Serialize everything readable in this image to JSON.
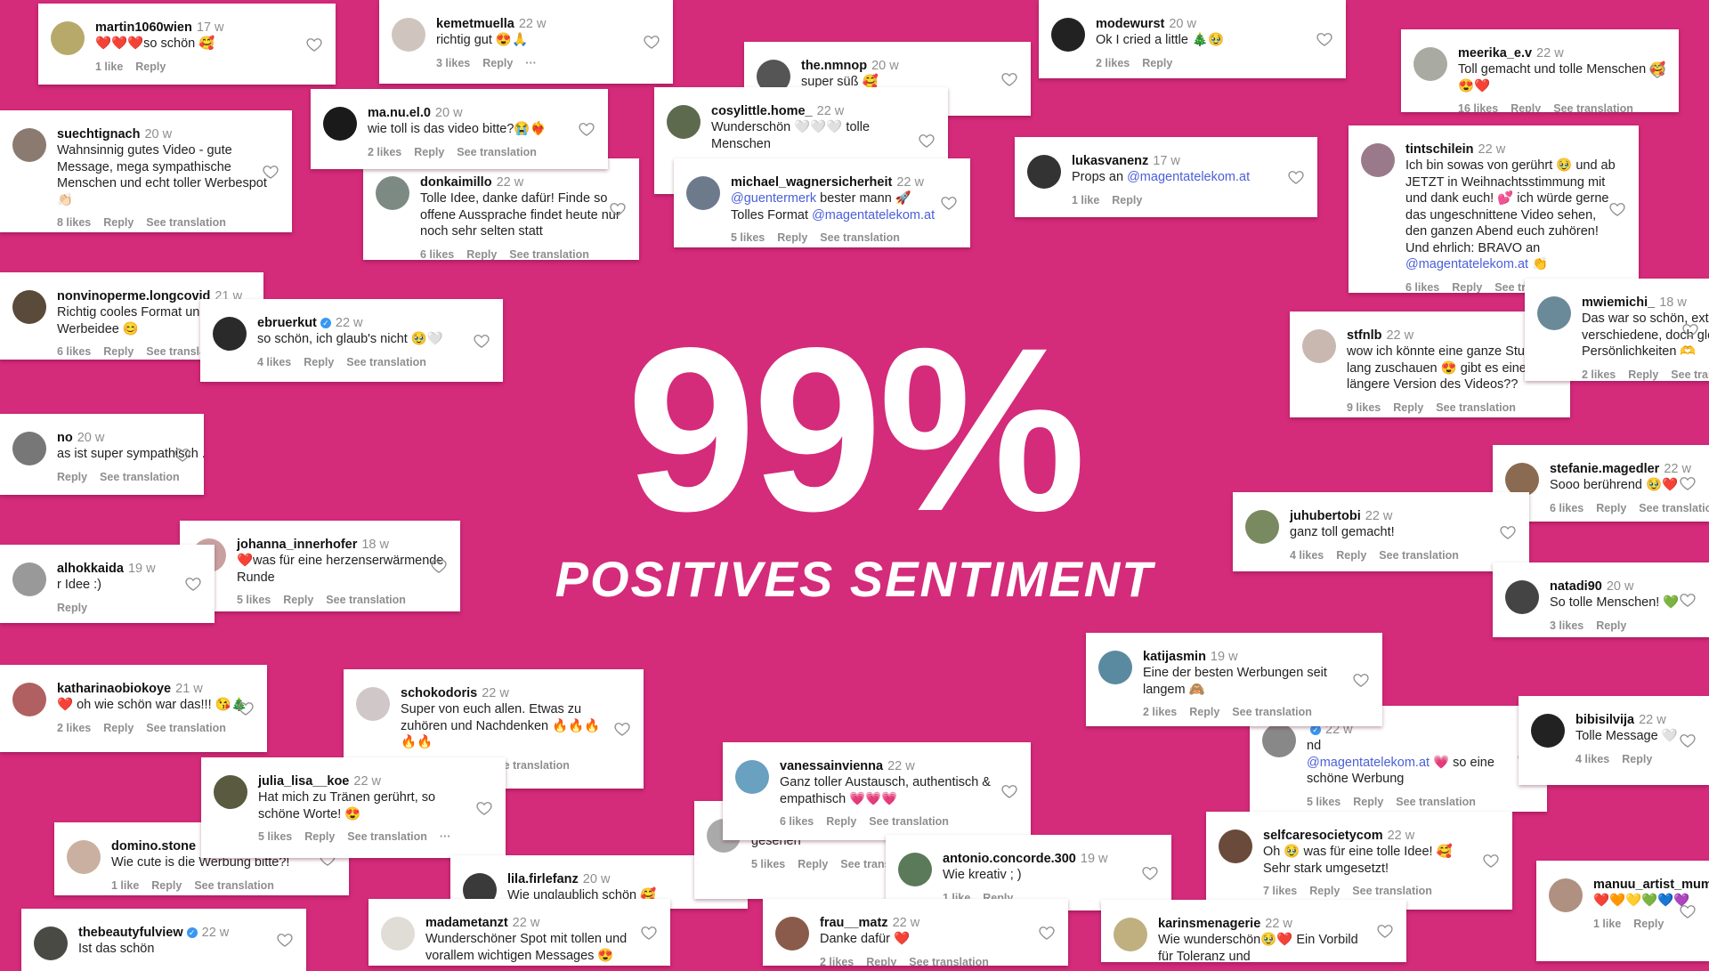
{
  "headline": {
    "value": "99%",
    "label": "POSITIVES SENTIMENT"
  },
  "colors": {
    "background": "#d42b7a",
    "mention": "#4a5fd8",
    "text": "#222222",
    "meta": "#8e8e8e"
  },
  "comments": [
    {
      "user": "martin1060wien",
      "time": "17 w",
      "lines": [
        "❤️❤️❤️so schön 🥰"
      ],
      "footer": [
        "1 like",
        "Reply"
      ]
    },
    {
      "user": "kemetmuella",
      "time": "22 w",
      "lines": [
        "richtig gut 😍🙏"
      ],
      "footer": [
        "3 likes",
        "Reply",
        "···"
      ]
    },
    {
      "user": "modewurst",
      "time": "20 w",
      "lines": [
        "Ok I cried a little 🎄🥹"
      ],
      "footer": [
        "2 likes",
        "Reply"
      ]
    },
    {
      "user": "meerika_e.v",
      "time": "22 w",
      "lines": [
        "Toll gemacht und tolle Menschen 🥰",
        "😍❤️"
      ],
      "footer": [
        "16 likes",
        "Reply",
        "See translation"
      ]
    },
    {
      "user": "the.nmnop",
      "time": "20 w",
      "lines": [
        "super süß 🥰"
      ],
      "footer": []
    },
    {
      "user": "cosylittle.home_",
      "time": "22 w",
      "lines": [
        "Wunderschön 🤍🤍🤍 tolle",
        "Menschen"
      ],
      "footer": []
    },
    {
      "user": "michael_wagnersicherheit",
      "time": "22 w",
      "lines": [
        "@guentermerk bester mann 🚀",
        "Tolles Format @magentatelekom.at"
      ],
      "footer": [
        "5 likes",
        "Reply",
        "See translation"
      ]
    },
    {
      "user": "suechtignach",
      "time": "20 w",
      "lines": [
        "Wahnsinnig gutes Video - gute",
        "Message, mega sympathische",
        "Menschen und echt toller Werbespot",
        "👏🏻"
      ],
      "footer": [
        "8 likes",
        "Reply",
        "See translation"
      ]
    },
    {
      "user": "donkaimillo",
      "time": "22 w",
      "lines": [
        "Tolle Idee, danke dafür! Finde so",
        "offene Aussprache findet heute nur",
        "noch sehr selten statt"
      ],
      "footer": [
        "6 likes",
        "Reply",
        "See translation"
      ]
    },
    {
      "user": "ma.nu.el.0",
      "time": "20 w",
      "lines": [
        "wie toll is das video bitte?😭❤️‍🔥"
      ],
      "footer": [
        "2 likes",
        "Reply",
        "See translation"
      ]
    },
    {
      "user": "lukasvanenz",
      "time": "17 w",
      "lines": [
        "Props an @magentatelekom.at"
      ],
      "footer": [
        "1 like",
        "Reply"
      ]
    },
    {
      "user": "tintschilein",
      "time": "22 w",
      "lines": [
        "Ich bin sowas von gerührt 🥹 und ab",
        "JETZT in Weihnachtsstimmung mit",
        "und dank euch! 💕 ich würde gerne",
        "das ungeschnittene Video sehen,",
        "den ganzen Abend euch zuhören!",
        "Und ehrlich: BRAVO an",
        "@magentatelekom.at 👏"
      ],
      "footer": [
        "6 likes",
        "Reply",
        "See translation"
      ]
    },
    {
      "user": "stfnlb",
      "time": "22 w",
      "lines": [
        "wow ich könnte eine ganze Stunde",
        "lang zuschauen 😍 gibt es eine",
        "längere Version des Videos??"
      ],
      "footer": [
        "9 likes",
        "Reply",
        "See translation"
      ]
    },
    {
      "user": "mwiemichi_",
      "time": "18 w",
      "lines": [
        "Das war so schön, extrem",
        "verschiedene, doch gleiche",
        "Persönlichkeiten 🫶"
      ],
      "footer": [
        "2 likes",
        "Reply",
        "See translation"
      ]
    },
    {
      "user": "nonvinoperme.longcovid",
      "time": "21 w",
      "lines": [
        "Richtig cooles Format und eine",
        "Werbeidee 😊"
      ],
      "footer": [
        "6 likes",
        "Reply",
        "See translation"
      ]
    },
    {
      "user": "ebruerkut",
      "verified": true,
      "time": "22 w",
      "lines": [
        "so schön, ich glaub's nicht 🥹🤍"
      ],
      "footer": [
        "4 likes",
        "Reply",
        "See translation"
      ]
    },
    {
      "user": "no",
      "time": "20 w",
      "lines": [
        "as ist super sympathisch ..."
      ],
      "footer": [
        "Reply",
        "See translation"
      ]
    },
    {
      "user": "johanna_innerhofer",
      "time": "18 w",
      "lines": [
        "❤️was für eine herzenserwärmende",
        "Runde"
      ],
      "footer": [
        "5 likes",
        "Reply",
        "See translation"
      ]
    },
    {
      "user": "alhokkaida",
      "time": "19 w",
      "lines": [
        "r Idee :)"
      ],
      "footer": [
        "Reply"
      ]
    },
    {
      "user": "stefanie.magedler",
      "time": "22 w",
      "lines": [
        "Sooo berührend 🥹❤️"
      ],
      "footer": [
        "6 likes",
        "Reply",
        "See translation"
      ]
    },
    {
      "user": "juhubertobi",
      "time": "22 w",
      "lines": [
        "ganz toll gemacht!"
      ],
      "footer": [
        "4 likes",
        "Reply",
        "See translation"
      ]
    },
    {
      "user": "natadi90",
      "time": "20 w",
      "lines": [
        "So tolle Menschen! 💚"
      ],
      "footer": [
        "3 likes",
        "Reply"
      ]
    },
    {
      "user": "katharinaobiokoye",
      "time": "21 w",
      "lines": [
        "❤️ oh wie schön war das!!! 😘🎄"
      ],
      "footer": [
        "2 likes",
        "Reply",
        "See translation"
      ]
    },
    {
      "user": "schokodoris",
      "time": "22 w",
      "lines": [
        "Super von euch allen. Etwas zu",
        "zuhören und Nachdenken 🔥🔥🔥",
        "🔥🔥"
      ],
      "footer": [
        "5 likes",
        "Reply",
        "See translation"
      ]
    },
    {
      "user": "domino.stone",
      "time": "17 w",
      "lines": [
        "Wie cute is die Werbung bitte?!"
      ],
      "footer": [
        "1 like",
        "Reply",
        "See translation"
      ]
    },
    {
      "user": "julia_lisa__koe",
      "time": "22 w",
      "lines": [
        "Hat mich zu Tränen gerührt, so",
        "schöne Worte! 😍"
      ],
      "footer": [
        "5 likes",
        "Reply",
        "See translation",
        "···"
      ]
    },
    {
      "user": "thebeautyfulview",
      "verified": true,
      "time": "22 w",
      "lines": [
        "Ist das schön"
      ],
      "footer": []
    },
    {
      "user": "lila.firlefanz",
      "time": "20 w",
      "lines": [
        "Wie unglaublich schön 🥰"
      ],
      "footer": []
    },
    {
      "user": "madametanzt",
      "time": "22 w",
      "lines": [
        "Wunderschöner Spot mit tollen und",
        "vorallem wichtigen Messages 😍"
      ],
      "footer": []
    },
    {
      "user": "",
      "time": "",
      "lines": [
        "gesehen"
      ],
      "footer": [
        "5 likes",
        "Reply",
        "See translation"
      ]
    },
    {
      "user": "vanessainvienna",
      "time": "22 w",
      "lines": [
        "Ganz toller Austausch, authentisch &",
        "empathisch 💗💗💗"
      ],
      "footer": [
        "6 likes",
        "Reply",
        "See translation"
      ]
    },
    {
      "user": "antonio.concorde.300",
      "time": "19 w",
      "lines": [
        "Wie kreativ ; )"
      ],
      "footer": [
        "1 like",
        "Reply"
      ]
    },
    {
      "user": "frau__matz",
      "time": "22 w",
      "lines": [
        "Danke dafür ❤️"
      ],
      "footer": [
        "2 likes",
        "Reply",
        "See translation"
      ]
    },
    {
      "user": "",
      "verified": true,
      "time": "22 w",
      "lines": [
        "nd",
        "@magentatelekom.at 💗 so eine",
        "schöne Werbung"
      ],
      "footer": [
        "5 likes",
        "Reply",
        "See translation"
      ]
    },
    {
      "user": "katijasmin",
      "time": "19 w",
      "lines": [
        "Eine der besten Werbungen seit",
        "langem 🙈"
      ],
      "footer": [
        "2 likes",
        "Reply",
        "See translation"
      ]
    },
    {
      "user": "bibisilvija",
      "time": "22 w",
      "lines": [
        "Tolle Message 🤍"
      ],
      "footer": [
        "4 likes",
        "Reply"
      ]
    },
    {
      "user": "selfcaresocietycom",
      "time": "22 w",
      "lines": [
        "Oh 🥹 was für eine tolle Idee! 🥰",
        "Sehr stark umgesetzt!"
      ],
      "footer": [
        "7 likes",
        "Reply",
        "See translation"
      ]
    },
    {
      "user": "karinsmenagerie",
      "time": "22 w",
      "lines": [
        "Wie wunderschön🥹❤️ Ein Vorbild",
        "für Toleranz und"
      ],
      "footer": []
    },
    {
      "user": "manuu_artist_mum",
      "time": "",
      "lines": [
        "❤️🧡💛💚💙💜"
      ],
      "footer": [
        "1 like",
        "Reply"
      ]
    }
  ]
}
